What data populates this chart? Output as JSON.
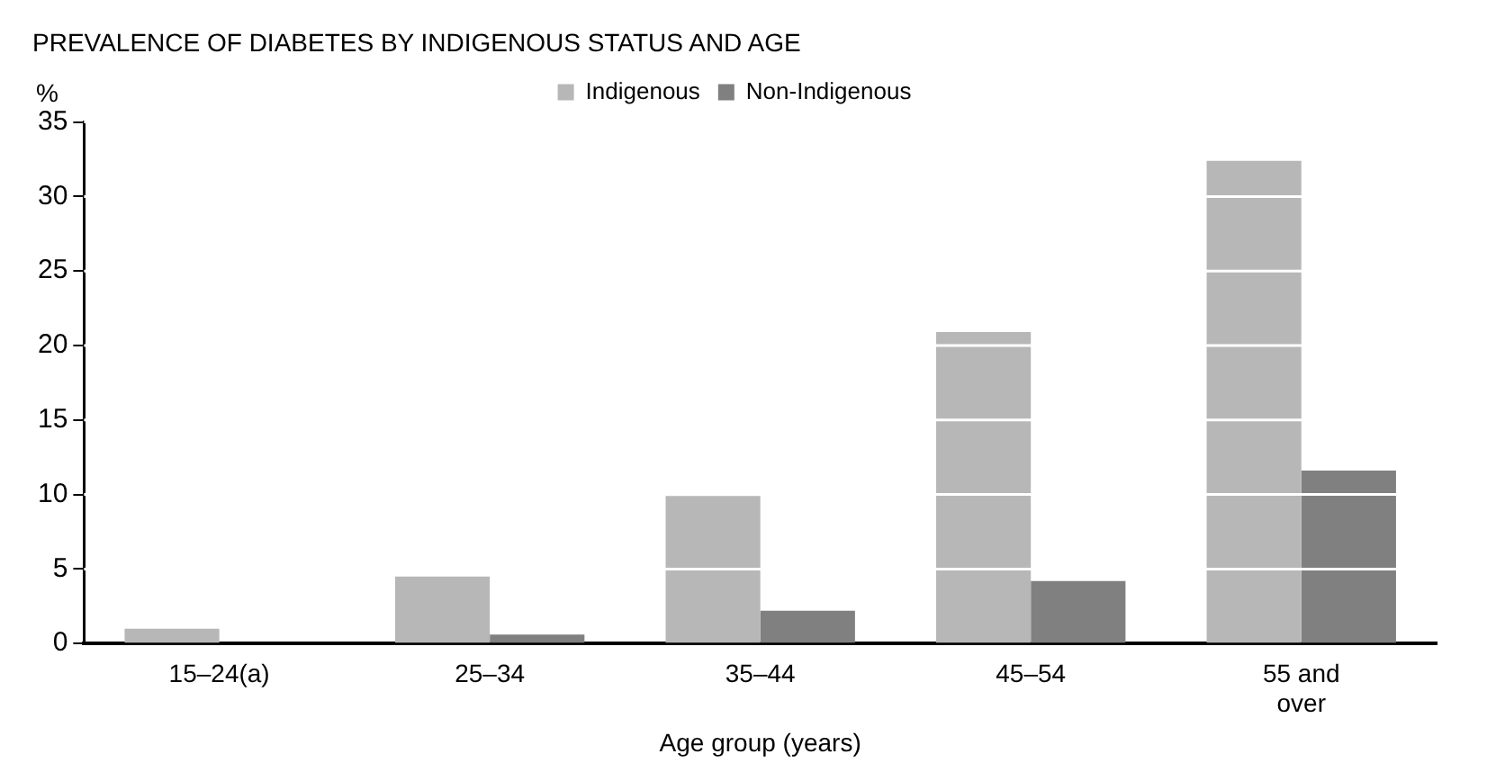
{
  "chart_data": {
    "type": "bar",
    "title": "PREVALENCE OF DIABETES BY INDIGENOUS STATUS AND AGE",
    "ylabel": "%",
    "xlabel": "Age group (years)",
    "categories": [
      "15–24(a)",
      "25–34",
      "35–44",
      "45–54",
      "55 and over"
    ],
    "series": [
      {
        "name": "Indigenous",
        "color": "#b7b7b7",
        "values": [
          1.0,
          4.5,
          9.9,
          20.9,
          32.4
        ]
      },
      {
        "name": "Non-Indigenous",
        "color": "#808080",
        "values": [
          0,
          0.6,
          2.2,
          4.2,
          11.6
        ]
      }
    ],
    "ylim": [
      0,
      35
    ],
    "yticks": [
      0,
      5,
      10,
      15,
      20,
      25,
      30,
      35
    ],
    "grid": "y",
    "legend": "top"
  }
}
